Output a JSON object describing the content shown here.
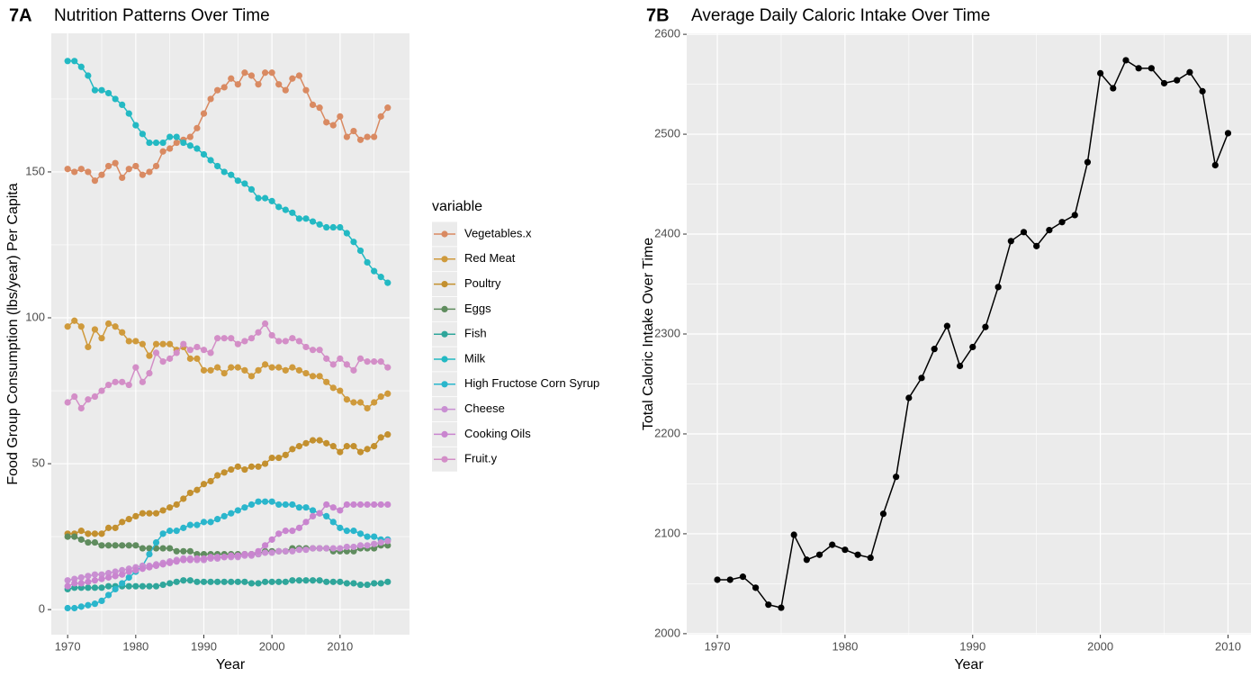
{
  "chart_data": [
    {
      "type": "line",
      "label": "7A",
      "title": "Nutrition Patterns Over Time",
      "x_label": "Year",
      "y_label": "Food Group Consumption (lbs/year) Per Capita",
      "legend_title": "variable",
      "x": [
        1970,
        1971,
        1972,
        1973,
        1974,
        1975,
        1976,
        1977,
        1978,
        1979,
        1980,
        1981,
        1982,
        1983,
        1984,
        1985,
        1986,
        1987,
        1988,
        1989,
        1990,
        1991,
        1992,
        1993,
        1994,
        1995,
        1996,
        1997,
        1998,
        1999,
        2000,
        2001,
        2002,
        2003,
        2004,
        2005,
        2006,
        2007,
        2008,
        2009,
        2010,
        2011,
        2012,
        2013,
        2014,
        2015,
        2016,
        2017
      ],
      "xlim": [
        1967.6,
        2020.2
      ],
      "xticks": [
        1970,
        1980,
        1990,
        2000,
        2010
      ],
      "ylim": [
        -8.6,
        197.5
      ],
      "yticks": [
        0,
        50,
        100,
        150
      ],
      "grid": true,
      "series": [
        {
          "name": "Vegetables.x",
          "color": "#d98a62",
          "values": [
            151,
            150,
            151,
            150,
            147,
            149,
            152,
            153,
            148,
            151,
            152,
            149,
            150,
            152,
            157,
            158,
            160,
            161,
            162,
            165,
            170,
            175,
            178,
            179,
            182,
            180,
            184,
            183,
            180,
            184,
            184,
            180,
            178,
            182,
            183,
            178,
            173,
            172,
            167,
            166,
            169,
            162,
            164,
            161,
            162,
            162,
            169,
            172
          ]
        },
        {
          "name": "Red Meat",
          "color": "#cf9a3c",
          "values": [
            97,
            99,
            97,
            90,
            96,
            93,
            98,
            97,
            95,
            92,
            92,
            91,
            87,
            91,
            91,
            91,
            89,
            90,
            86,
            86,
            82,
            82,
            83,
            81,
            83,
            83,
            82,
            80,
            82,
            84,
            83,
            83,
            82,
            83,
            82,
            81,
            80,
            80,
            78,
            76,
            75,
            72,
            71,
            71,
            69,
            71,
            73,
            74
          ]
        },
        {
          "name": "Poultry",
          "color": "#c3902f",
          "values": [
            26,
            26,
            27,
            26,
            26,
            26,
            28,
            28,
            30,
            31,
            32,
            33,
            33,
            33,
            34,
            35,
            36,
            38,
            40,
            41,
            43,
            44,
            46,
            47,
            48,
            49,
            48,
            49,
            49,
            50,
            52,
            52,
            53,
            55,
            56,
            57,
            58,
            58,
            57,
            56,
            54,
            56,
            56,
            54,
            55,
            56,
            59,
            60
          ]
        },
        {
          "name": "Eggs",
          "color": "#5f8c5e",
          "values": [
            25,
            25,
            24,
            23,
            23,
            22,
            22,
            22,
            22,
            22,
            22,
            21,
            21,
            21,
            21,
            21,
            20,
            20,
            20,
            19,
            19,
            19,
            19,
            19,
            19,
            19,
            19,
            19,
            19,
            20,
            20,
            20,
            20,
            21,
            21,
            21,
            21,
            21,
            21,
            20,
            20,
            20,
            20,
            21,
            21,
            21,
            22,
            22
          ]
        },
        {
          "name": "Fish",
          "color": "#2fa69b",
          "values": [
            7,
            7.5,
            7.5,
            7.5,
            7.5,
            7.5,
            8,
            8,
            8,
            8,
            8,
            8,
            8,
            8,
            8.5,
            9,
            9.5,
            10,
            10,
            9.5,
            9.5,
            9.5,
            9.5,
            9.5,
            9.5,
            9.5,
            9.5,
            9,
            9,
            9.5,
            9.5,
            9.5,
            9.5,
            10,
            10,
            10,
            10,
            10,
            9.5,
            9.5,
            9.5,
            9,
            9,
            8.5,
            8.5,
            9,
            9,
            9.5
          ]
        },
        {
          "name": "Milk",
          "color": "#23b9c3",
          "values": [
            188,
            188,
            186,
            183,
            178,
            178,
            177,
            175,
            173,
            170,
            166,
            163,
            160,
            160,
            160,
            162,
            162,
            160,
            159,
            158,
            156,
            154,
            152,
            150,
            149,
            147,
            146,
            144,
            141,
            141,
            140,
            138,
            137,
            136,
            134,
            134,
            133,
            132,
            131,
            131,
            131,
            129,
            126,
            123,
            119,
            116,
            114,
            112
          ]
        },
        {
          "name": "High Fructose Corn Syrup",
          "color": "#2ab6cc",
          "values": [
            0.5,
            0.5,
            1,
            1.5,
            2,
            3,
            5,
            7,
            9,
            11,
            13,
            15,
            19,
            23,
            26,
            27,
            27,
            28,
            29,
            29,
            30,
            30,
            31,
            32,
            33,
            34,
            35,
            36,
            37,
            37,
            37,
            36,
            36,
            36,
            35,
            35,
            34,
            33,
            32,
            30,
            28,
            27,
            27,
            26,
            25,
            25,
            24,
            24
          ]
        },
        {
          "name": "Cheese",
          "color": "#c98fd2",
          "values": [
            10,
            10.5,
            11,
            11.5,
            12,
            12,
            12.5,
            13,
            13.5,
            14,
            14.5,
            15,
            15,
            15.5,
            16,
            16.5,
            17,
            17.5,
            17.5,
            17,
            17,
            17.5,
            17.5,
            18,
            18,
            18,
            18.5,
            18.5,
            19,
            19.5,
            19.5,
            20,
            20,
            20,
            20.5,
            20.5,
            21,
            21,
            21,
            21,
            21,
            21.5,
            21.5,
            22,
            22,
            22.5,
            23,
            23.5
          ]
        },
        {
          "name": "Cooking Oils",
          "color": "#c985cf",
          "values": [
            8,
            9,
            9,
            9.5,
            10,
            10.5,
            11,
            11.5,
            12,
            13,
            13.5,
            14,
            14.5,
            15,
            15.5,
            16,
            16.5,
            17,
            17,
            17.5,
            17.5,
            18,
            18,
            18,
            18.5,
            18.5,
            19,
            19,
            20,
            22,
            24,
            26,
            27,
            27,
            28,
            30,
            32,
            33,
            36,
            35,
            34,
            36,
            36,
            36,
            36,
            36,
            36,
            36
          ]
        },
        {
          "name": "Fruit.y",
          "color": "#d38ec7",
          "values": [
            71,
            73,
            69,
            72,
            73,
            75,
            77,
            78,
            78,
            77,
            83,
            78,
            81,
            88,
            85,
            86,
            88,
            91,
            89,
            90,
            89,
            88,
            93,
            93,
            93,
            91,
            92,
            93,
            95,
            98,
            94,
            92,
            92,
            93,
            92,
            90,
            89,
            89,
            86,
            84,
            86,
            84,
            82,
            86,
            85,
            85,
            85,
            83
          ]
        }
      ]
    },
    {
      "type": "line",
      "label": "7B",
      "title": "Average Daily Caloric Intake Over Time",
      "x_label": "Year",
      "y_label": "Total Caloric Intake Over Time",
      "x": [
        1970,
        1971,
        1972,
        1973,
        1974,
        1975,
        1976,
        1977,
        1978,
        1979,
        1980,
        1981,
        1982,
        1983,
        1984,
        1985,
        1986,
        1987,
        1988,
        1989,
        1990,
        1991,
        1992,
        1993,
        1994,
        1995,
        1996,
        1997,
        1998,
        1999,
        2000,
        2001,
        2002,
        2003,
        2004,
        2005,
        2006,
        2007,
        2008,
        2009,
        2010
      ],
      "xlim": [
        1967.6,
        2011.8
      ],
      "xticks": [
        1970,
        1980,
        1990,
        2000,
        2010
      ],
      "ylim": [
        1999,
        2601
      ],
      "yticks": [
        2000,
        2100,
        2200,
        2300,
        2400,
        2500,
        2600
      ],
      "grid": true,
      "series": [
        {
          "color": "#000000",
          "values": [
            2054,
            2054,
            2057,
            2046,
            2029,
            2026,
            2099,
            2074,
            2079,
            2089,
            2084,
            2079,
            2076,
            2120,
            2157,
            2236,
            2256,
            2285,
            2308,
            2268,
            2287,
            2307,
            2347,
            2393,
            2402,
            2388,
            2404,
            2412,
            2419,
            2472,
            2561,
            2546,
            2574,
            2566,
            2566,
            2551,
            2554,
            2562,
            2543,
            2469,
            2501
          ]
        }
      ]
    }
  ]
}
